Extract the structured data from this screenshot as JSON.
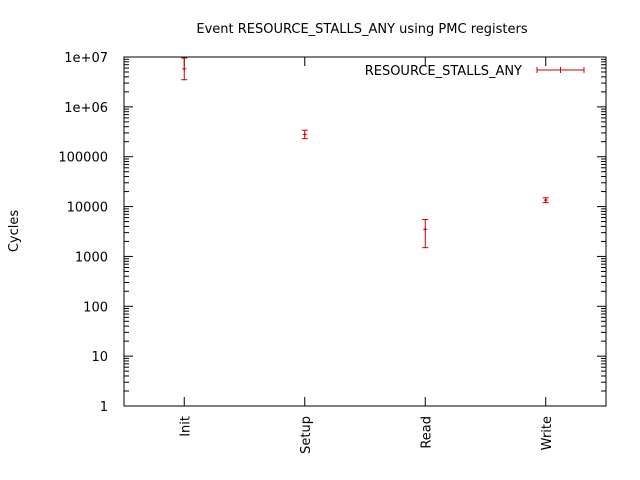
{
  "chart_data": {
    "type": "errorbar",
    "title": "Event RESOURCE_STALLS_ANY using PMC registers",
    "xlabel": "",
    "ylabel": "Cycles",
    "yscale": "log",
    "ylim": [
      1,
      10000000
    ],
    "y_ticks": [
      1,
      10,
      100,
      1000,
      10000,
      100000,
      1000000,
      10000000
    ],
    "y_tick_labels": [
      "1",
      "10",
      "100",
      "1000",
      "10000",
      "100000",
      "1e+06",
      "1e+07"
    ],
    "categories": [
      "Init",
      "Setup",
      "Read",
      "Write"
    ],
    "legend": {
      "position": "top-right"
    },
    "grid": false,
    "series": [
      {
        "name": "RESOURCE_STALLS_ANY",
        "color": "#cc0000",
        "values": [
          5800000,
          280000,
          3500,
          13500
        ],
        "low": [
          3500000,
          230000,
          1500,
          12000
        ],
        "high": [
          9500000,
          340000,
          5500,
          15000
        ]
      }
    ]
  }
}
